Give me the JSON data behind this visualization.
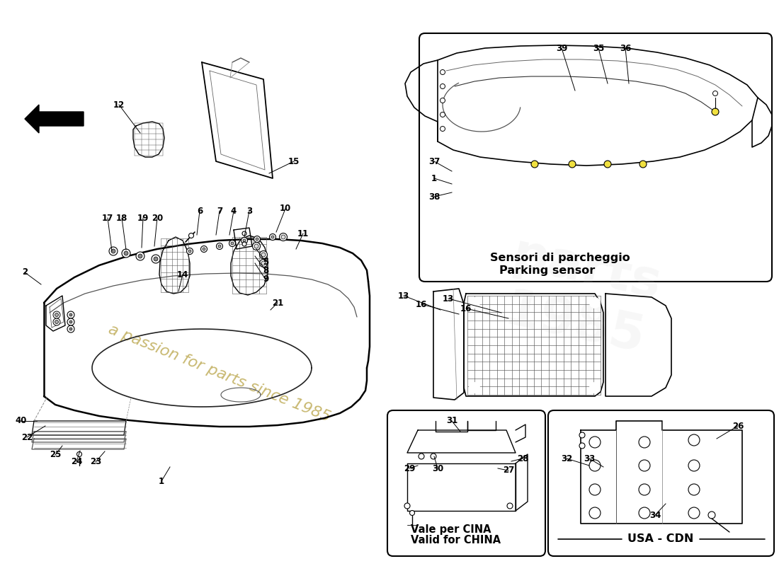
{
  "bg": "#ffffff",
  "lc": "#111111",
  "label_parking_it": "Sensori di parcheggio",
  "label_parking_en": "Parking sensor",
  "label_china_it": "Vale per CINA",
  "label_china_en": "Valid for CHINA",
  "label_usa": "USA - CDN",
  "watermark": "a passion for parts since 1985",
  "wm_color": "#c8b870",
  "parts_main": [
    [
      1,
      228,
      680,
      240,
      660
    ],
    [
      2,
      35,
      385,
      58,
      402
    ],
    [
      3,
      352,
      298,
      345,
      335
    ],
    [
      4,
      330,
      298,
      324,
      332
    ],
    [
      5,
      375,
      370,
      362,
      352
    ],
    [
      6,
      282,
      298,
      278,
      332
    ],
    [
      7,
      310,
      298,
      305,
      332
    ],
    [
      8,
      375,
      382,
      360,
      362
    ],
    [
      9,
      375,
      395,
      360,
      372
    ],
    [
      10,
      403,
      295,
      390,
      328
    ],
    [
      11,
      428,
      330,
      418,
      352
    ],
    [
      12,
      168,
      148,
      198,
      188
    ],
    [
      13,
      570,
      418,
      622,
      438
    ],
    [
      14,
      258,
      388,
      252,
      412
    ],
    [
      15,
      415,
      228,
      380,
      245
    ],
    [
      16,
      595,
      430,
      648,
      444
    ],
    [
      17,
      152,
      308,
      158,
      355
    ],
    [
      18,
      172,
      308,
      178,
      353
    ],
    [
      19,
      202,
      308,
      200,
      350
    ],
    [
      20,
      222,
      308,
      218,
      348
    ],
    [
      21,
      392,
      428,
      382,
      438
    ],
    [
      22,
      38,
      618,
      64,
      602
    ],
    [
      23,
      135,
      653,
      148,
      638
    ],
    [
      24,
      108,
      653,
      113,
      637
    ],
    [
      25,
      78,
      643,
      88,
      630
    ],
    [
      40,
      30,
      595,
      52,
      595
    ]
  ],
  "parts_parking": [
    [
      39,
      793,
      68,
      812,
      128
    ],
    [
      35,
      845,
      68,
      858,
      118
    ],
    [
      36,
      883,
      68,
      888,
      118
    ],
    [
      37,
      613,
      228,
      638,
      242
    ],
    [
      1,
      613,
      252,
      638,
      260
    ],
    [
      38,
      613,
      278,
      638,
      272
    ]
  ],
  "parts_duct": [
    [
      13,
      633,
      422,
      708,
      442
    ],
    [
      16,
      658,
      436,
      718,
      450
    ]
  ],
  "parts_china": [
    [
      31,
      638,
      595,
      650,
      610
    ],
    [
      28,
      738,
      648,
      722,
      652
    ],
    [
      27,
      718,
      665,
      703,
      662
    ],
    [
      30,
      618,
      662,
      613,
      645
    ],
    [
      29,
      578,
      662,
      590,
      658
    ]
  ],
  "parts_usa": [
    [
      26,
      1042,
      602,
      1012,
      620
    ],
    [
      32,
      800,
      648,
      832,
      658
    ],
    [
      33,
      832,
      648,
      852,
      660
    ],
    [
      34,
      925,
      728,
      940,
      712
    ]
  ]
}
